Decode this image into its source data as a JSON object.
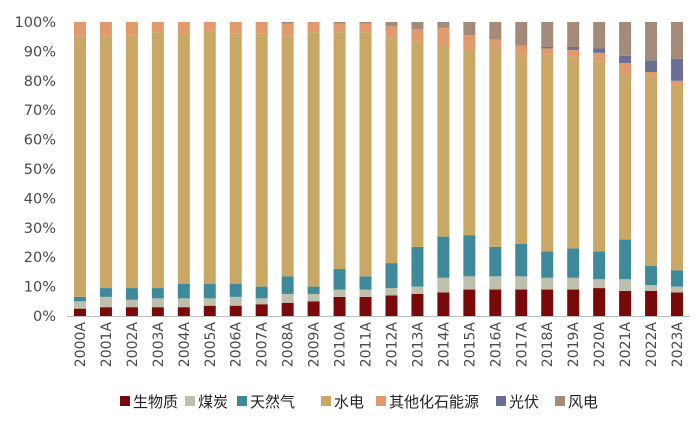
{
  "chart_data": {
    "type": "bar",
    "stacked": true,
    "title": "",
    "xlabel": "",
    "ylabel": "",
    "ylim": [
      0,
      100
    ],
    "y_ticks": [
      "0%",
      "10%",
      "20%",
      "30%",
      "40%",
      "50%",
      "60%",
      "70%",
      "80%",
      "90%",
      "100%"
    ],
    "legend_position": "bottom",
    "grid": false,
    "categories": [
      "2000A",
      "2001A",
      "2002A",
      "2003A",
      "2004A",
      "2005A",
      "2006A",
      "2007A",
      "2008A",
      "2009A",
      "2010A",
      "2011A",
      "2012A",
      "2013A",
      "2014A",
      "2015A",
      "2016A",
      "2017A",
      "2018A",
      "2019A",
      "2020A",
      "2021A",
      "2022A",
      "2023A"
    ],
    "series": [
      {
        "name": "生物质",
        "color": "#7a0a0a",
        "values": [
          2.5,
          3,
          3,
          3,
          3,
          3.5,
          3.5,
          4,
          4.5,
          5,
          6.5,
          6.5,
          7,
          7.5,
          8,
          9,
          9,
          9,
          9,
          9,
          9.5,
          8.5,
          8.5,
          8
        ]
      },
      {
        "name": "煤炭",
        "color": "#bfbfae",
        "values": [
          2.5,
          3.5,
          2.5,
          3,
          3,
          2.5,
          3,
          2,
          3,
          2.5,
          2.5,
          2.5,
          2.5,
          2.5,
          5,
          4.5,
          4.5,
          4.5,
          4,
          4,
          3,
          4,
          2,
          2
        ]
      },
      {
        "name": "天然气",
        "color": "#3f8a9a",
        "values": [
          1.5,
          3,
          4,
          3.5,
          5,
          5,
          4.5,
          4,
          6,
          2.5,
          7,
          4.5,
          8.5,
          13.5,
          14,
          14,
          10,
          11,
          9,
          10,
          9.5,
          13.5,
          6.5,
          5.5
        ]
      },
      {
        "name": "水电",
        "color": "#c9a765",
        "values": [
          88.5,
          85.5,
          86,
          87,
          85,
          86,
          85,
          86,
          82,
          86.5,
          80.5,
          83,
          76.5,
          70,
          65,
          63,
          67,
          64.5,
          67,
          65,
          64.5,
          56.5,
          64.5,
          63
        ]
      },
      {
        "name": "其他化石能源",
        "color": "#e09a6e",
        "values": [
          5,
          5,
          4.5,
          3.5,
          4,
          3,
          4,
          4,
          4,
          3.5,
          3,
          3,
          4,
          4,
          6,
          5,
          3.5,
          3,
          2,
          2.5,
          3,
          3.5,
          1.5,
          1.5
        ]
      },
      {
        "name": "光伏",
        "color": "#6b6f93",
        "values": [
          0,
          0,
          0,
          0,
          0,
          0,
          0,
          0,
          0,
          0,
          0,
          0,
          0,
          0,
          0,
          0,
          0,
          0,
          0.5,
          1,
          1.5,
          2.5,
          4,
          7.5
        ]
      },
      {
        "name": "风电",
        "color": "#a48b79",
        "values": [
          0,
          0,
          0,
          0,
          0,
          0,
          0,
          0,
          0.5,
          0,
          0.5,
          0.5,
          1.5,
          2.5,
          2,
          4.5,
          6,
          8,
          8.5,
          8.5,
          9,
          11.5,
          13,
          12.5
        ]
      }
    ]
  }
}
